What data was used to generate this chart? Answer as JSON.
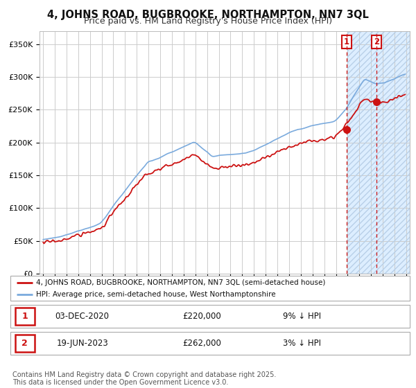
{
  "title": "4, JOHNS ROAD, BUGBROOKE, NORTHAMPTON, NN7 3QL",
  "subtitle": "Price paid vs. HM Land Registry's House Price Index (HPI)",
  "title_fontsize": 10.5,
  "subtitle_fontsize": 9,
  "ylabel_ticks": [
    "£0",
    "£50K",
    "£100K",
    "£150K",
    "£200K",
    "£250K",
    "£300K",
    "£350K"
  ],
  "ytick_values": [
    0,
    50000,
    100000,
    150000,
    200000,
    250000,
    300000,
    350000
  ],
  "ylim": [
    0,
    370000
  ],
  "xlim_start": 1994.7,
  "xlim_end": 2026.3,
  "background_color": "#ffffff",
  "grid_color": "#cccccc",
  "hpi_line_color": "#7aaadd",
  "price_line_color": "#cc1111",
  "marker1_date": 2020.92,
  "marker2_date": 2023.47,
  "marker1_price": 220000,
  "marker2_price": 262000,
  "shade_start": 2021.0,
  "shade_end": 2026.3,
  "shade_color": "#ddeeff",
  "dashed_line1_x": 2020.92,
  "dashed_line2_x": 2023.47,
  "legend_label_price": "4, JOHNS ROAD, BUGBROOKE, NORTHAMPTON, NN7 3QL (semi-detached house)",
  "legend_label_hpi": "HPI: Average price, semi-detached house, West Northamptonshire",
  "table_rows": [
    {
      "num": "1",
      "date": "03-DEC-2020",
      "price": "£220,000",
      "note": "9% ↓ HPI"
    },
    {
      "num": "2",
      "date": "19-JUN-2023",
      "price": "£262,000",
      "note": "3% ↓ HPI"
    }
  ],
  "footer": "Contains HM Land Registry data © Crown copyright and database right 2025.\nThis data is licensed under the Open Government Licence v3.0.",
  "footer_fontsize": 7,
  "box1_label": "1",
  "box2_label": "2"
}
